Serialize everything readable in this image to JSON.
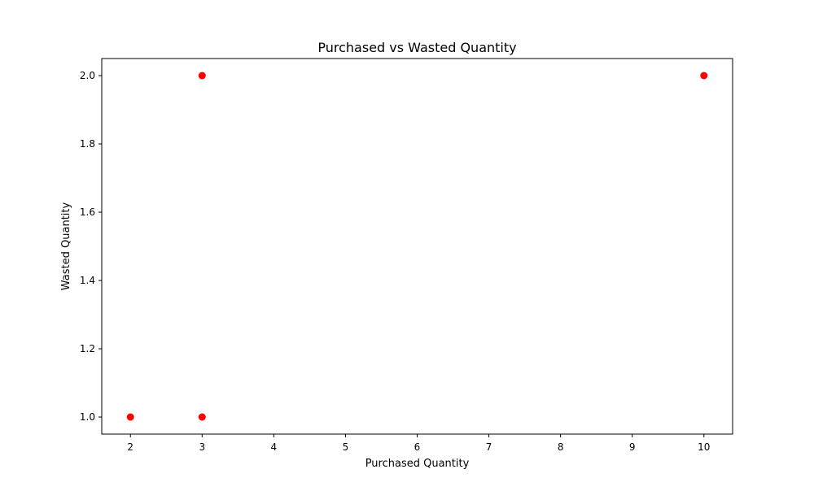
{
  "chart_data": {
    "type": "scatter",
    "title": "Purchased vs Wasted Quantity",
    "xlabel": "Purchased Quantity",
    "ylabel": "Wasted Quantity",
    "xlim": [
      1.6,
      10.4
    ],
    "ylim": [
      0.95,
      2.05
    ],
    "xticks": [
      2,
      3,
      4,
      5,
      6,
      7,
      8,
      9,
      10
    ],
    "xtick_labels": [
      "2",
      "3",
      "4",
      "5",
      "6",
      "7",
      "8",
      "9",
      "10"
    ],
    "yticks": [
      1.0,
      1.2,
      1.4,
      1.6,
      1.8,
      2.0
    ],
    "ytick_labels": [
      "1.0",
      "1.2",
      "1.4",
      "1.6",
      "1.8",
      "2.0"
    ],
    "grid": false,
    "legend": false,
    "marker_color": "#ff0000",
    "points": [
      {
        "x": 2,
        "y": 1
      },
      {
        "x": 3,
        "y": 2
      },
      {
        "x": 3,
        "y": 1
      },
      {
        "x": 10,
        "y": 2
      }
    ]
  }
}
